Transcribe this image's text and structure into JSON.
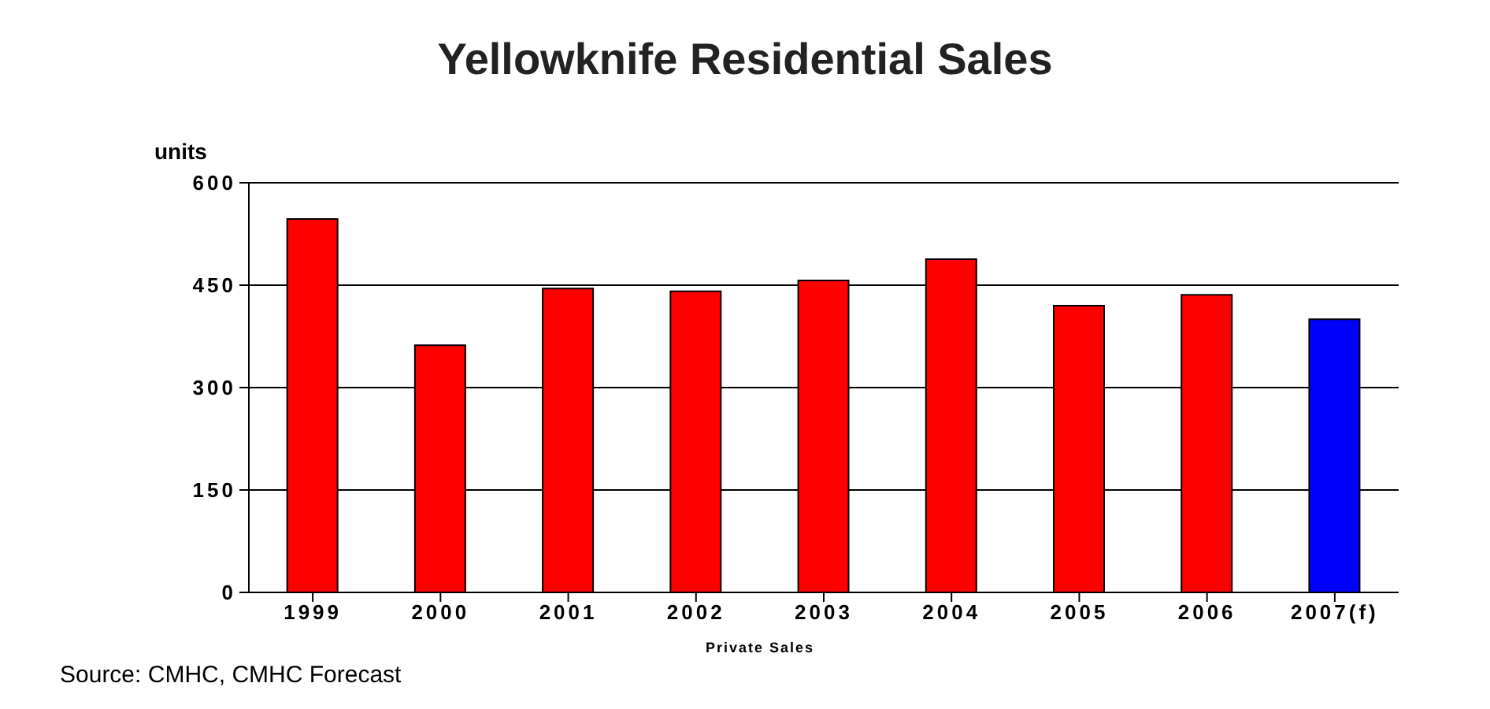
{
  "chart_data": {
    "type": "bar",
    "title": "Yellowknife Residential Sales",
    "ylabel": "units",
    "xlabel": "Private Sales",
    "categories": [
      "1999",
      "2000",
      "2001",
      "2002",
      "2003",
      "2004",
      "2005",
      "2006",
      "2007(f)"
    ],
    "values": [
      547,
      362,
      445,
      441,
      457,
      488,
      420,
      436,
      400
    ],
    "colors": [
      "#ff0000",
      "#ff0000",
      "#ff0000",
      "#ff0000",
      "#ff0000",
      "#ff0000",
      "#ff0000",
      "#ff0000",
      "#0000ff"
    ],
    "ylim": [
      0,
      600
    ],
    "yticks": [
      0,
      150,
      300,
      450,
      600
    ],
    "grid": "y",
    "annotations": [
      "Source: CMHC, CMHC Forecast"
    ]
  }
}
